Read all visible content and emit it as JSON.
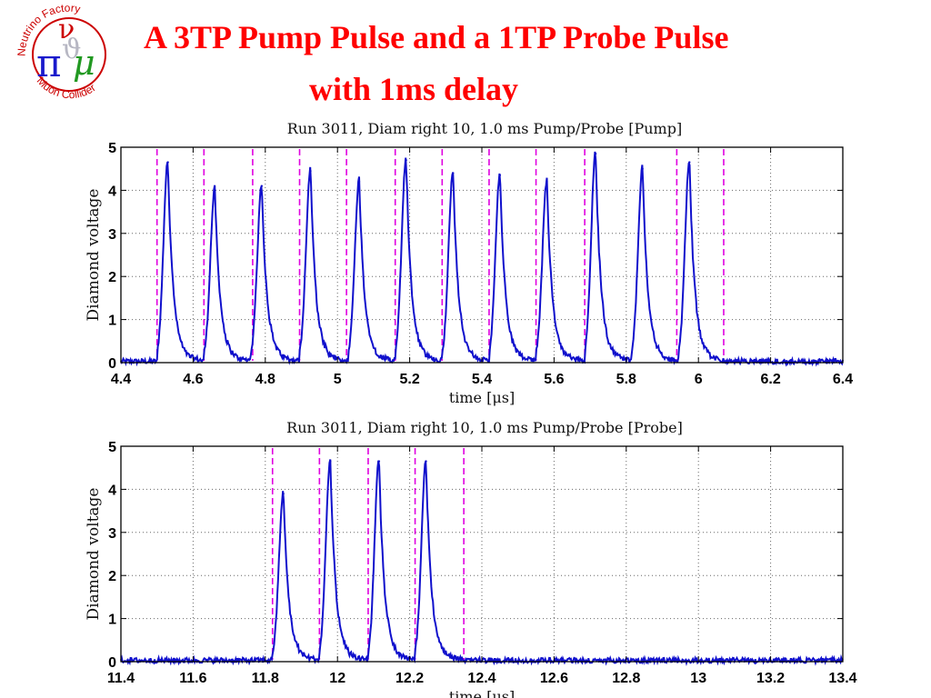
{
  "slide": {
    "title_line1": "A 3TP Pump Pulse and a 1TP Probe Pulse",
    "title_line2": "with 1ms delay"
  },
  "logo": {
    "text_top": "Neutrino Factory",
    "text_bottom": "Muon Collider",
    "colors": {
      "ring": "#cc0000",
      "text": "#cc0000",
      "pi": "#1a1acc",
      "nu": "#cc0000",
      "mu": "#229922"
    }
  },
  "colors": {
    "signal": "#1010cc",
    "marker": "#e000e0",
    "grid": "#666666",
    "title": "#ff0000"
  },
  "chart_data": [
    {
      "type": "line",
      "title": "Run 3011, Diam right 10, 1.0 ms Pump/Probe [Pump]",
      "xlabel": "time [μs]",
      "ylabel": "Diamond voltage",
      "xlim": [
        4.4,
        6.4
      ],
      "ylim": [
        0,
        5
      ],
      "xticks": [
        "4.4",
        "4.6",
        "4.8",
        "5",
        "5.2",
        "5.4",
        "5.6",
        "5.8",
        "6",
        "6.2",
        "6.4"
      ],
      "yticks": [
        "0",
        "1",
        "2",
        "3",
        "4",
        "5"
      ],
      "grid": true,
      "baseline": 0.03,
      "peaks": [
        {
          "x": 4.53,
          "y": 4.65
        },
        {
          "x": 4.66,
          "y": 4.0
        },
        {
          "x": 4.79,
          "y": 4.1
        },
        {
          "x": 4.925,
          "y": 4.45
        },
        {
          "x": 5.06,
          "y": 4.2
        },
        {
          "x": 5.19,
          "y": 4.7
        },
        {
          "x": 5.32,
          "y": 4.4
        },
        {
          "x": 5.45,
          "y": 4.35
        },
        {
          "x": 5.58,
          "y": 4.2
        },
        {
          "x": 5.715,
          "y": 4.85
        },
        {
          "x": 5.845,
          "y": 4.5
        },
        {
          "x": 5.975,
          "y": 4.65
        }
      ],
      "markers": [
        4.5,
        4.63,
        4.765,
        4.895,
        5.025,
        5.16,
        5.29,
        5.42,
        5.55,
        5.685,
        5.94,
        6.07
      ]
    },
    {
      "type": "line",
      "title": "Run 3011, Diam right 10, 1.0 ms Pump/Probe [Probe]",
      "xlabel": "time [μs]",
      "ylabel": "Diamond voltage",
      "xlim": [
        11.4,
        13.4
      ],
      "ylim": [
        0,
        5
      ],
      "xticks": [
        "11.4",
        "11.6",
        "11.8",
        "12",
        "12.2",
        "12.4",
        "12.6",
        "12.8",
        "13",
        "13.2",
        "13.4"
      ],
      "yticks": [
        "0",
        "1",
        "2",
        "3",
        "4",
        "5"
      ],
      "grid": true,
      "baseline": 0.03,
      "peaks": [
        {
          "x": 11.85,
          "y": 3.9
        },
        {
          "x": 11.98,
          "y": 4.65
        },
        {
          "x": 12.115,
          "y": 4.65
        },
        {
          "x": 12.245,
          "y": 4.65
        }
      ],
      "markers": [
        11.82,
        11.95,
        12.085,
        12.215,
        12.35
      ]
    }
  ]
}
